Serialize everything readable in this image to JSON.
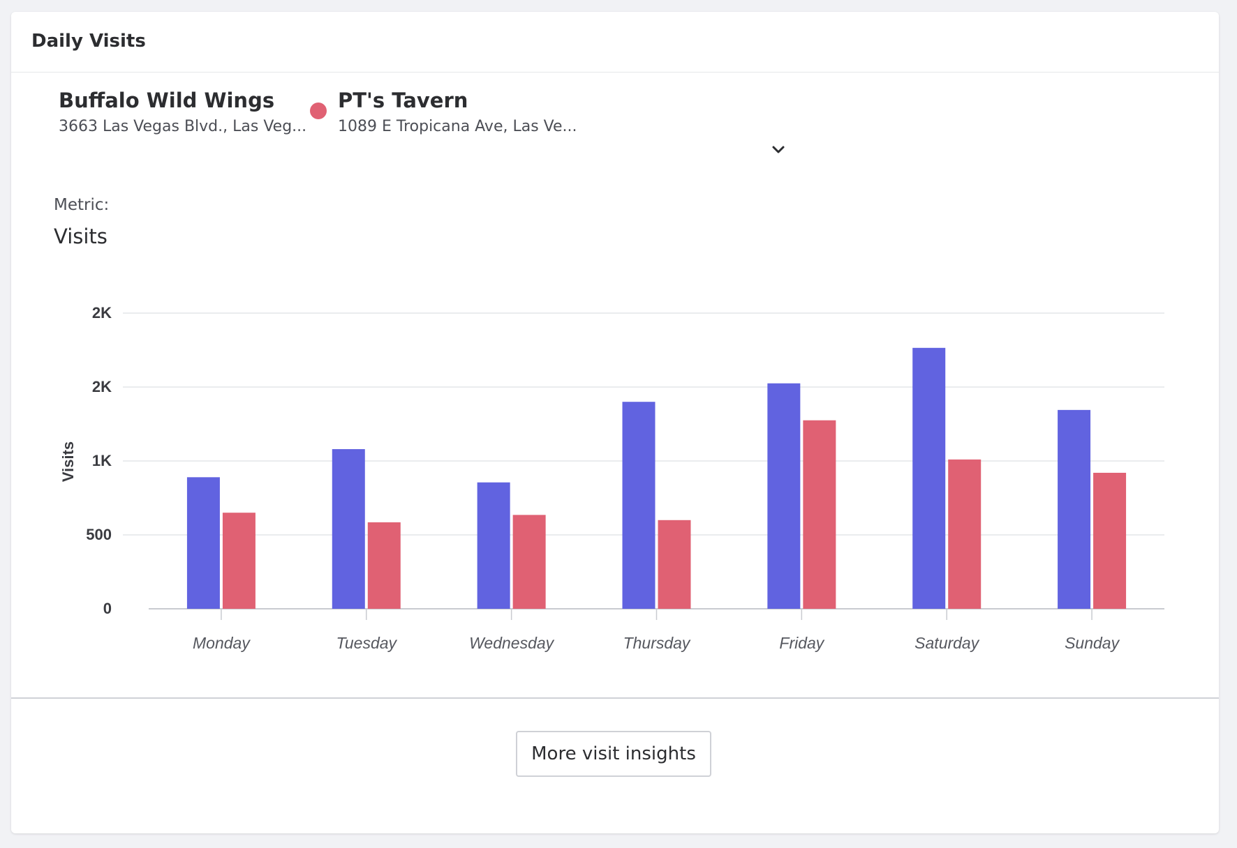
{
  "card": {
    "title": "Daily Visits"
  },
  "places": [
    {
      "name": "Buffalo Wild Wings",
      "address": "3663 Las Vegas Blvd., Las Veg...",
      "color": "#6163e0",
      "show_dot": false
    },
    {
      "name": "PT's Tavern",
      "address": "1089 E Tropicana Ave, Las Ve...",
      "color": "#e06173",
      "show_dot": true
    }
  ],
  "expand_icon": "chevron-down-icon",
  "metric": {
    "label": "Metric:",
    "value": "Visits"
  },
  "chart_data": {
    "type": "bar",
    "categories": [
      "Monday",
      "Tuesday",
      "Wednesday",
      "Thursday",
      "Friday",
      "Saturday",
      "Sunday"
    ],
    "series": [
      {
        "name": "Buffalo Wild Wings",
        "color": "#6163e0",
        "values": [
          890,
          1080,
          855,
          1400,
          1525,
          1765,
          1345
        ]
      },
      {
        "name": "PT's Tavern",
        "color": "#e06173",
        "values": [
          650,
          585,
          635,
          600,
          1275,
          1010,
          920
        ]
      }
    ],
    "ylabel": "Visits",
    "xlabel": "",
    "ylim": [
      0,
      2000
    ],
    "yticks": [
      0,
      500,
      1000,
      1500,
      2000
    ],
    "ytick_labels": [
      "0",
      "500",
      "1K",
      "2K",
      "2K"
    ],
    "grid": true,
    "legend": "none"
  },
  "footer": {
    "button_label": "More visit insights"
  }
}
